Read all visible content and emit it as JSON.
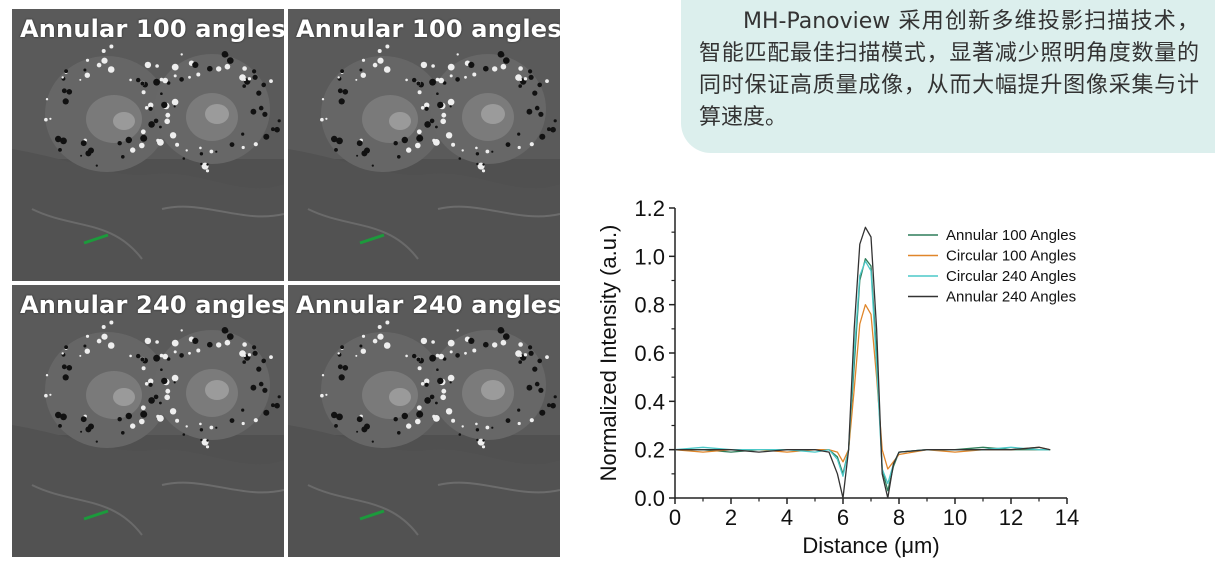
{
  "panels": [
    {
      "label": "Annular 100 angles"
    },
    {
      "label": "Annular 100 angles"
    },
    {
      "label": "Annular 240 angles"
    },
    {
      "label": "Annular 240 angles"
    }
  ],
  "description": "MH-Panoview 采用创新多维投影扫描技术，智能匹配最佳扫描模式，显著减少照明角度数量的同时保证高质量成像，从而大幅提升图像采集与计算速度。",
  "colors": {
    "description_bg": "#dcefed",
    "profile_line": "#1c9a3c"
  },
  "chart_data": {
    "type": "line",
    "xlabel": "Distance (μm)",
    "ylabel": "Normalized Intensity (a.u.)",
    "xlim": [
      0,
      14
    ],
    "ylim": [
      0,
      1.2
    ],
    "xticks": [
      "0",
      "2",
      "4",
      "6",
      "8",
      "10",
      "12",
      "14"
    ],
    "yticks": [
      "0.0",
      "0.2",
      "0.4",
      "0.6",
      "0.8",
      "1.0",
      "1.2"
    ],
    "legend_position": "top-right",
    "series": [
      {
        "name": "Annular   100 Angles",
        "color": "#2f7d5a",
        "x": [
          0,
          1,
          2,
          3,
          4,
          5,
          5.5,
          5.8,
          6.0,
          6.2,
          6.4,
          6.6,
          6.8,
          7.0,
          7.2,
          7.4,
          7.6,
          7.8,
          8.0,
          9,
          10,
          11,
          12,
          13,
          13.4
        ],
        "y": [
          0.2,
          0.2,
          0.19,
          0.2,
          0.2,
          0.2,
          0.2,
          0.17,
          0.1,
          0.2,
          0.55,
          0.9,
          0.99,
          0.96,
          0.6,
          0.12,
          0.03,
          0.13,
          0.19,
          0.2,
          0.2,
          0.21,
          0.2,
          0.2,
          0.2
        ]
      },
      {
        "name": "Circular   100 Angles",
        "color": "#e0862a",
        "x": [
          0,
          1,
          2,
          3,
          4,
          5,
          5.5,
          5.8,
          6.0,
          6.2,
          6.4,
          6.6,
          6.8,
          7.0,
          7.2,
          7.4,
          7.6,
          7.8,
          8.0,
          9,
          10,
          11,
          12,
          13,
          13.4
        ],
        "y": [
          0.2,
          0.19,
          0.2,
          0.2,
          0.19,
          0.2,
          0.2,
          0.19,
          0.15,
          0.2,
          0.45,
          0.72,
          0.8,
          0.76,
          0.5,
          0.2,
          0.12,
          0.15,
          0.18,
          0.2,
          0.19,
          0.2,
          0.2,
          0.21,
          0.2
        ]
      },
      {
        "name": "Circular   240 Angles",
        "color": "#4cc8c8",
        "x": [
          0,
          1,
          2,
          3,
          4,
          5,
          5.5,
          5.8,
          6.0,
          6.2,
          6.4,
          6.6,
          6.8,
          7.0,
          7.2,
          7.4,
          7.6,
          7.8,
          8.0,
          9,
          10,
          11,
          12,
          13,
          13.4
        ],
        "y": [
          0.2,
          0.21,
          0.2,
          0.2,
          0.2,
          0.19,
          0.2,
          0.16,
          0.09,
          0.2,
          0.6,
          0.92,
          0.98,
          0.94,
          0.55,
          0.12,
          0.06,
          0.14,
          0.19,
          0.2,
          0.2,
          0.2,
          0.21,
          0.2,
          0.2
        ]
      },
      {
        "name": "Annular   240 Angles",
        "color": "#333333",
        "x": [
          0,
          1,
          2,
          3,
          4,
          5,
          5.5,
          5.8,
          6.0,
          6.2,
          6.4,
          6.6,
          6.8,
          7.0,
          7.2,
          7.4,
          7.6,
          7.8,
          8.0,
          9,
          10,
          11,
          12,
          13,
          13.4
        ],
        "y": [
          0.2,
          0.2,
          0.2,
          0.19,
          0.2,
          0.2,
          0.19,
          0.1,
          0.0,
          0.2,
          0.7,
          1.05,
          1.12,
          1.08,
          0.7,
          0.1,
          0.0,
          0.14,
          0.19,
          0.2,
          0.2,
          0.2,
          0.2,
          0.21,
          0.2
        ]
      }
    ]
  }
}
